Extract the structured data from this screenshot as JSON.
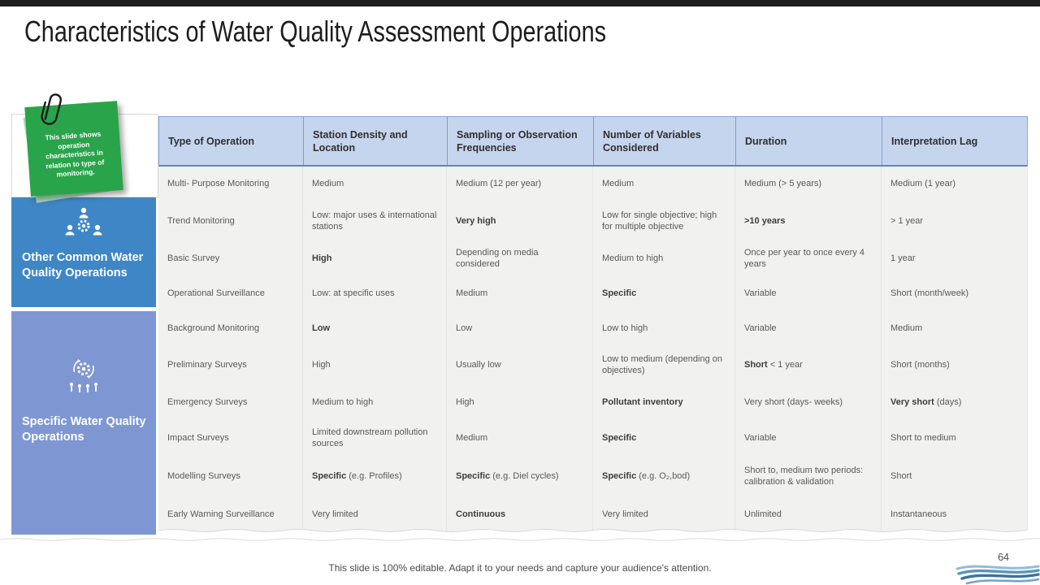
{
  "slide": {
    "title": "Characteristics of Water Quality Assessment Operations",
    "page_number": "64",
    "footer_note": "This slide is 100% editable. Adapt it to your needs and capture your audience's attention."
  },
  "sticky_note": {
    "text": "This slide shows operation characteristics in relation to type of monitoring."
  },
  "sidebar": {
    "groups": [
      {
        "label": "Other Common Water Quality Operations",
        "icon": "team-gear-icon",
        "color": "#3f86c6"
      },
      {
        "label": "Specific Water Quality Operations",
        "icon": "gear-process-people-icon",
        "color": "#7e97d3"
      }
    ]
  },
  "table": {
    "headers": [
      "Type of Operation",
      "Station Density and Location",
      "Sampling or Observation Frequencies",
      "Number of Variables Considered",
      "Duration",
      "Interpretation Lag"
    ],
    "rows": [
      [
        "Multi- Purpose Monitoring",
        "Medium",
        "Medium (12 per year)",
        "Medium",
        "Medium (> 5 years)",
        "Medium (1 year)"
      ],
      [
        "Trend Monitoring",
        "Low: major uses & international stations",
        "**Very high**",
        "Low for single objective; high for multiple objective",
        "**>10 years**",
        "> 1 year"
      ],
      [
        "Basic Survey",
        "**High**",
        "Depending on media considered",
        "Medium to high",
        "Once per year to once every 4 years",
        "1 year"
      ],
      [
        "Operational Surveillance",
        "Low: at specific uses",
        "Medium",
        "**Specific**",
        "Variable",
        "Short (month/week)"
      ],
      [
        "Background Monitoring",
        "**Low**",
        "Low",
        "Low to high",
        "Variable",
        "Medium"
      ],
      [
        "Preliminary Surveys",
        "High",
        "Usually low",
        "Low to medium (depending on objectives)",
        "**Short** < 1 year",
        "Short (months)"
      ],
      [
        "Emergency Surveys",
        "Medium to high",
        "High",
        "**Pollutant inventory**",
        "Very short (days- weeks)",
        "**Very short** (days)"
      ],
      [
        "Impact Surveys",
        "Limited downstream pollution sources",
        "Medium",
        "**Specific**",
        "Variable",
        "Short to medium"
      ],
      [
        "Modelling Surveys",
        "**Specific** (e.g. Profiles)",
        "**Specific** (e.g. Diel cycles)",
        "**Specific** (e.g. O₂,bod)",
        "Short to, medium two periods: calibration & validation",
        "Short"
      ],
      [
        "Early Warning Surveillance",
        "Very limited",
        "**Continuous**",
        "Very limited",
        "Unlimited",
        "Instantaneous"
      ]
    ]
  },
  "colors": {
    "top_bar": "#1e1e1e",
    "header_bg": "#c6d5ee",
    "header_border": "#5d86c5",
    "body_bg": "#f1f1f0",
    "box1_blue": "#3f86c6",
    "box2_blue": "#7e97d3",
    "note_green": "#29a44b",
    "wave_blue_dark": "#2f6690",
    "wave_blue_mid": "#4e8ab5",
    "wave_blue_light": "#8fbcdb"
  }
}
